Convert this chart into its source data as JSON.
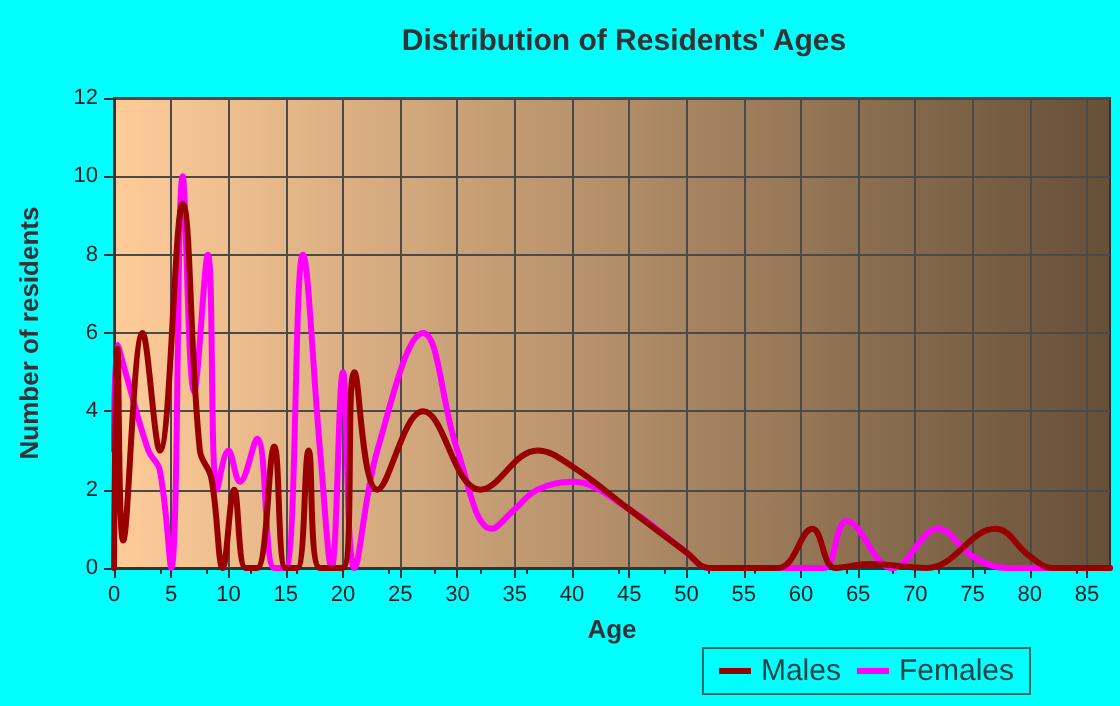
{
  "chart_data": {
    "type": "line",
    "title": "Distribution of Residents' Ages",
    "xlabel": "Age",
    "ylabel": "Number of residents",
    "xlim": [
      0,
      87
    ],
    "xticks": [
      0,
      5,
      10,
      15,
      20,
      25,
      30,
      35,
      40,
      45,
      50,
      55,
      60,
      65,
      70,
      75,
      80,
      85
    ],
    "ylim": [
      0,
      12
    ],
    "yticks": [
      0,
      2,
      4,
      6,
      8,
      10,
      12
    ],
    "grid": true,
    "legend": "bottom right",
    "marker": "none",
    "line_style": "solid",
    "series": [
      {
        "name": "Males",
        "color": "#990000",
        "x": [
          0,
          0.3,
          0.8,
          2.5,
          4,
          6,
          7.5,
          8.5,
          9.5,
          10.5,
          11.5,
          12.5,
          14,
          15,
          16,
          17,
          18,
          20,
          21,
          23,
          27,
          32,
          37,
          40,
          45,
          50,
          52,
          58,
          61,
          63,
          66,
          71,
          77,
          80,
          82,
          87
        ],
        "values": [
          0,
          5.6,
          0.7,
          6,
          3,
          9.3,
          3,
          2.3,
          0,
          2,
          0,
          0,
          3.1,
          0,
          0,
          3,
          0,
          0,
          5,
          2,
          4,
          2,
          3,
          2.6,
          1.5,
          0.4,
          0,
          0,
          1,
          0,
          0.1,
          0,
          1,
          0.3,
          0,
          0
        ]
      },
      {
        "name": "Females",
        "color": "#ff00ff",
        "x": [
          0,
          0.3,
          1,
          3,
          4,
          5,
          6,
          7,
          8.2,
          9,
          10,
          11,
          12.5,
          14,
          15,
          16.5,
          18,
          19,
          20,
          21,
          23,
          27,
          30,
          33,
          35,
          37,
          40,
          45,
          50,
          52,
          60,
          62,
          64,
          68,
          72,
          75,
          78,
          87
        ],
        "values": [
          3,
          5.7,
          5,
          3,
          2.5,
          0,
          10,
          4.5,
          8,
          2,
          3,
          2.2,
          3.3,
          0,
          0,
          8,
          3,
          0,
          5,
          0,
          3,
          6,
          3,
          1,
          1.5,
          2,
          2.2,
          1.5,
          0.4,
          0,
          0,
          0,
          1.2,
          0,
          1,
          0.3,
          0,
          0
        ]
      }
    ]
  }
}
